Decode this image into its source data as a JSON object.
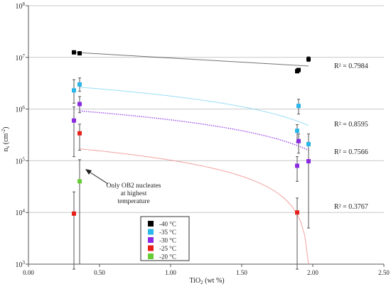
{
  "chart_data": {
    "type": "scatter",
    "xlabel": "TiO",
    "xlabel_sub": "2",
    "xlabel_suffix": " (wt %)",
    "ylabel": "n",
    "ylabel_sub": "s",
    "ylabel_suffix": " (cm",
    "ylabel_sup": "-2",
    "ylabel_close": ")",
    "xlim": [
      0,
      2.5
    ],
    "ylim": [
      1000,
      100000000
    ],
    "yscale": "log",
    "x_ticks": [
      {
        "value": 0,
        "label": "0.00"
      },
      {
        "value": 0.5,
        "label": "0.50"
      },
      {
        "value": 1.0,
        "label": "1.00"
      },
      {
        "value": 1.5,
        "label": "1.50"
      },
      {
        "value": 2.0,
        "label": "2.00"
      },
      {
        "value": 2.5,
        "label": "2.50"
      }
    ],
    "y_ticks": [
      {
        "value": 1000,
        "base": "10",
        "exp": "3"
      },
      {
        "value": 10000,
        "base": "10",
        "exp": "4"
      },
      {
        "value": 100000,
        "base": "10",
        "exp": "5"
      },
      {
        "value": 1000000,
        "base": "10",
        "exp": "6"
      },
      {
        "value": 10000000,
        "base": "10",
        "exp": "7"
      },
      {
        "value": 100000000,
        "base": "10",
        "exp": "8"
      }
    ],
    "grid": {
      "horizontal": true,
      "vertical": false
    },
    "legend_position": "bottom-center",
    "series": [
      {
        "name": "-40 °C",
        "color": "#000000",
        "points": [
          {
            "x": 0.32,
            "y": 12500000
          },
          {
            "x": 0.36,
            "y": 12000000
          },
          {
            "x": 1.89,
            "y": 5400000,
            "ylow": 5000000,
            "yhigh": 6000000
          },
          {
            "x": 1.9,
            "y": 5700000
          },
          {
            "x": 1.97,
            "y": 9200000,
            "ylow": 8300000,
            "yhigh": 10300000
          }
        ],
        "trend": {
          "x0": 0.32,
          "x1": 1.97,
          "y0": 12500000,
          "y1": 6800000,
          "curve": "exponential"
        },
        "r2": "R² = 0.7984"
      },
      {
        "name": "-35 °C",
        "color": "#29b6ea",
        "points": [
          {
            "x": 0.32,
            "y": 2300000,
            "ylow": 1300000,
            "yhigh": 3700000
          },
          {
            "x": 0.36,
            "y": 3000000,
            "ylow": 2200000,
            "yhigh": 4000000
          },
          {
            "x": 1.89,
            "y": 380000,
            "ylow": 230000,
            "yhigh": 500000
          },
          {
            "x": 1.9,
            "y": 1150000,
            "ylow": 800000,
            "yhigh": 1550000
          },
          {
            "x": 1.97,
            "y": 210000,
            "ylow": 100000,
            "yhigh": 330000
          }
        ],
        "trend": {
          "x0": 0.36,
          "x1": 1.97,
          "y0": 2650000,
          "y1": 480000,
          "curve": "linear"
        },
        "r2": "R² = 0.8595"
      },
      {
        "name": "-30 °C",
        "color": "#8a2be2",
        "points": [
          {
            "x": 0.32,
            "y": 600000,
            "ylow": 120000,
            "yhigh": 1100000
          },
          {
            "x": 0.36,
            "y": 1250000,
            "ylow": 850000,
            "yhigh": 1750000
          },
          {
            "x": 1.89,
            "y": 80000,
            "ylow": 40000,
            "yhigh": 120000
          },
          {
            "x": 1.9,
            "y": 240000,
            "ylow": 140000,
            "yhigh": 330000
          },
          {
            "x": 1.97,
            "y": 98000,
            "ylow": 5000,
            "yhigh": 210000
          }
        ],
        "trend": {
          "x0": 0.36,
          "x1": 1.97,
          "y0": 920000,
          "y1": 160000,
          "curve": "linear",
          "dotted": true
        },
        "r2": "R² = 0.7566"
      },
      {
        "name": "-25 °C",
        "color": "#e8201a",
        "points": [
          {
            "x": 0.32,
            "y": 9500,
            "ylow": 800,
            "yhigh": 25000
          },
          {
            "x": 0.36,
            "y": 340000,
            "ylow": 160000,
            "yhigh": 510000
          },
          {
            "x": 1.89,
            "y": 10000,
            "ylow": 800,
            "yhigh": 19000
          }
        ],
        "trend": {
          "x0": 0.36,
          "x1": 1.97,
          "y0": 170000,
          "y1": 800,
          "curve": "linear"
        },
        "r2": "R² = 0.3767"
      },
      {
        "name": "-20 °C",
        "color": "#66cc33",
        "points": [
          {
            "x": 0.36,
            "y": 40000,
            "ylow": 1000,
            "yhigh": 105000
          }
        ]
      }
    ],
    "annotation": {
      "lines": [
        "Only OB2 nucleates",
        "at highest",
        "temperature"
      ]
    }
  }
}
